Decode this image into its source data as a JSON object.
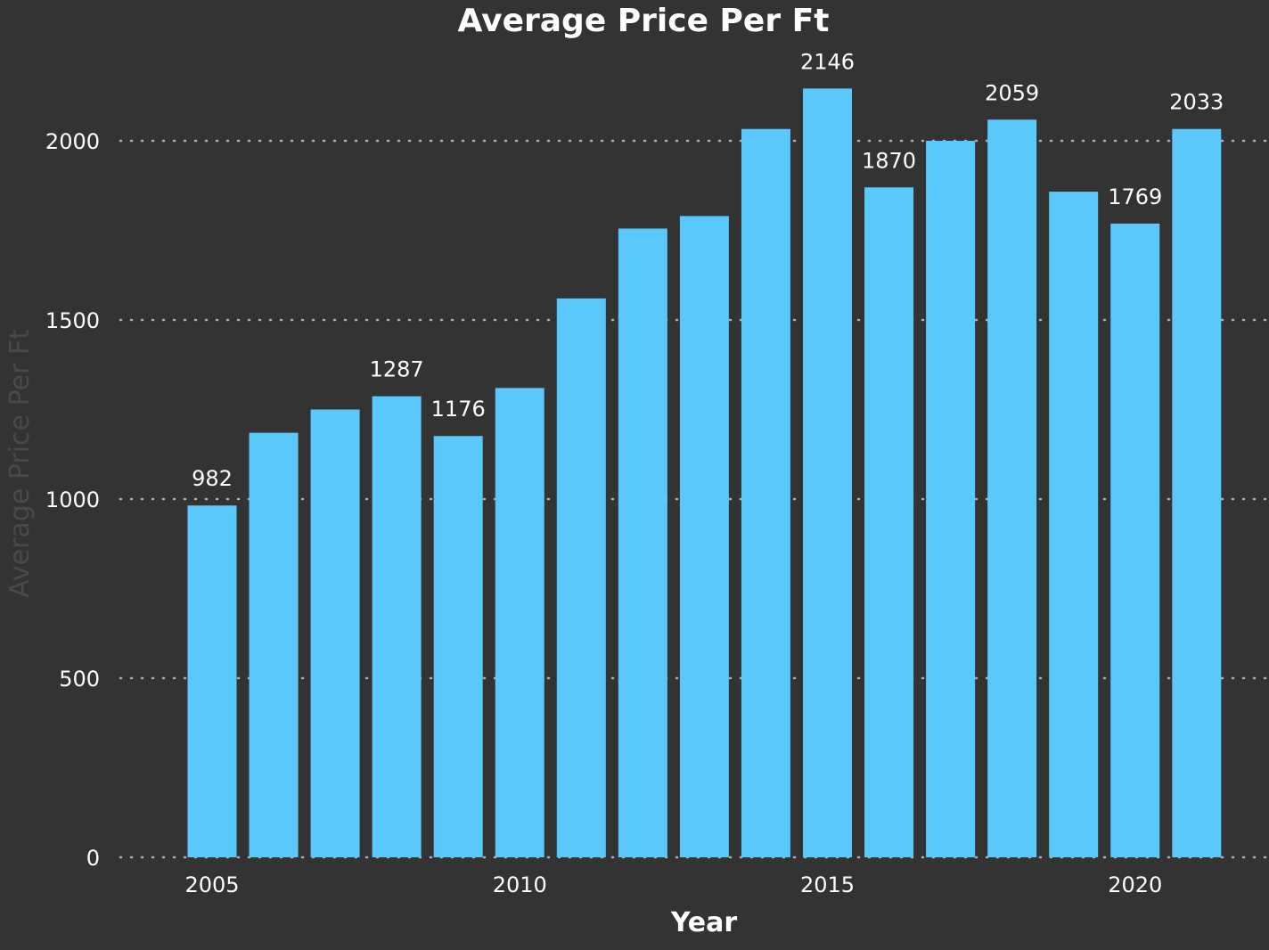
{
  "colors": {
    "background": "#333333",
    "bar": "#5bc8fb",
    "text": "#ffffff",
    "grid": "#b0b0b0",
    "y_axis_title": "#4a4a4a"
  },
  "chart_data": {
    "type": "bar",
    "title": "Average Price Per Ft",
    "xlabel": "Year",
    "ylabel": "Average Price Per Ft",
    "categories": [
      2005,
      2006,
      2007,
      2008,
      2009,
      2010,
      2011,
      2012,
      2013,
      2014,
      2015,
      2016,
      2017,
      2018,
      2019,
      2020,
      2021
    ],
    "values": [
      982,
      1185,
      1250,
      1287,
      1176,
      1310,
      1560,
      1755,
      1790,
      2033,
      2146,
      1870,
      2000,
      2059,
      1858,
      1769,
      2033
    ],
    "data_labels": [
      {
        "x": 2005,
        "text": "982"
      },
      {
        "x": 2008,
        "text": "1287"
      },
      {
        "x": 2009,
        "text": "1176"
      },
      {
        "x": 2015,
        "text": "2146"
      },
      {
        "x": 2016,
        "text": "1870"
      },
      {
        "x": 2018,
        "text": "2059"
      },
      {
        "x": 2020,
        "text": "1769"
      },
      {
        "x": 2021,
        "text": "2033"
      }
    ],
    "xticks": [
      2005,
      2010,
      2015,
      2020
    ],
    "yticks": [
      0,
      500,
      1000,
      1500,
      2000
    ],
    "ylim": [
      0,
      2200
    ],
    "grid": "horizontal dotted",
    "legend": "none"
  }
}
